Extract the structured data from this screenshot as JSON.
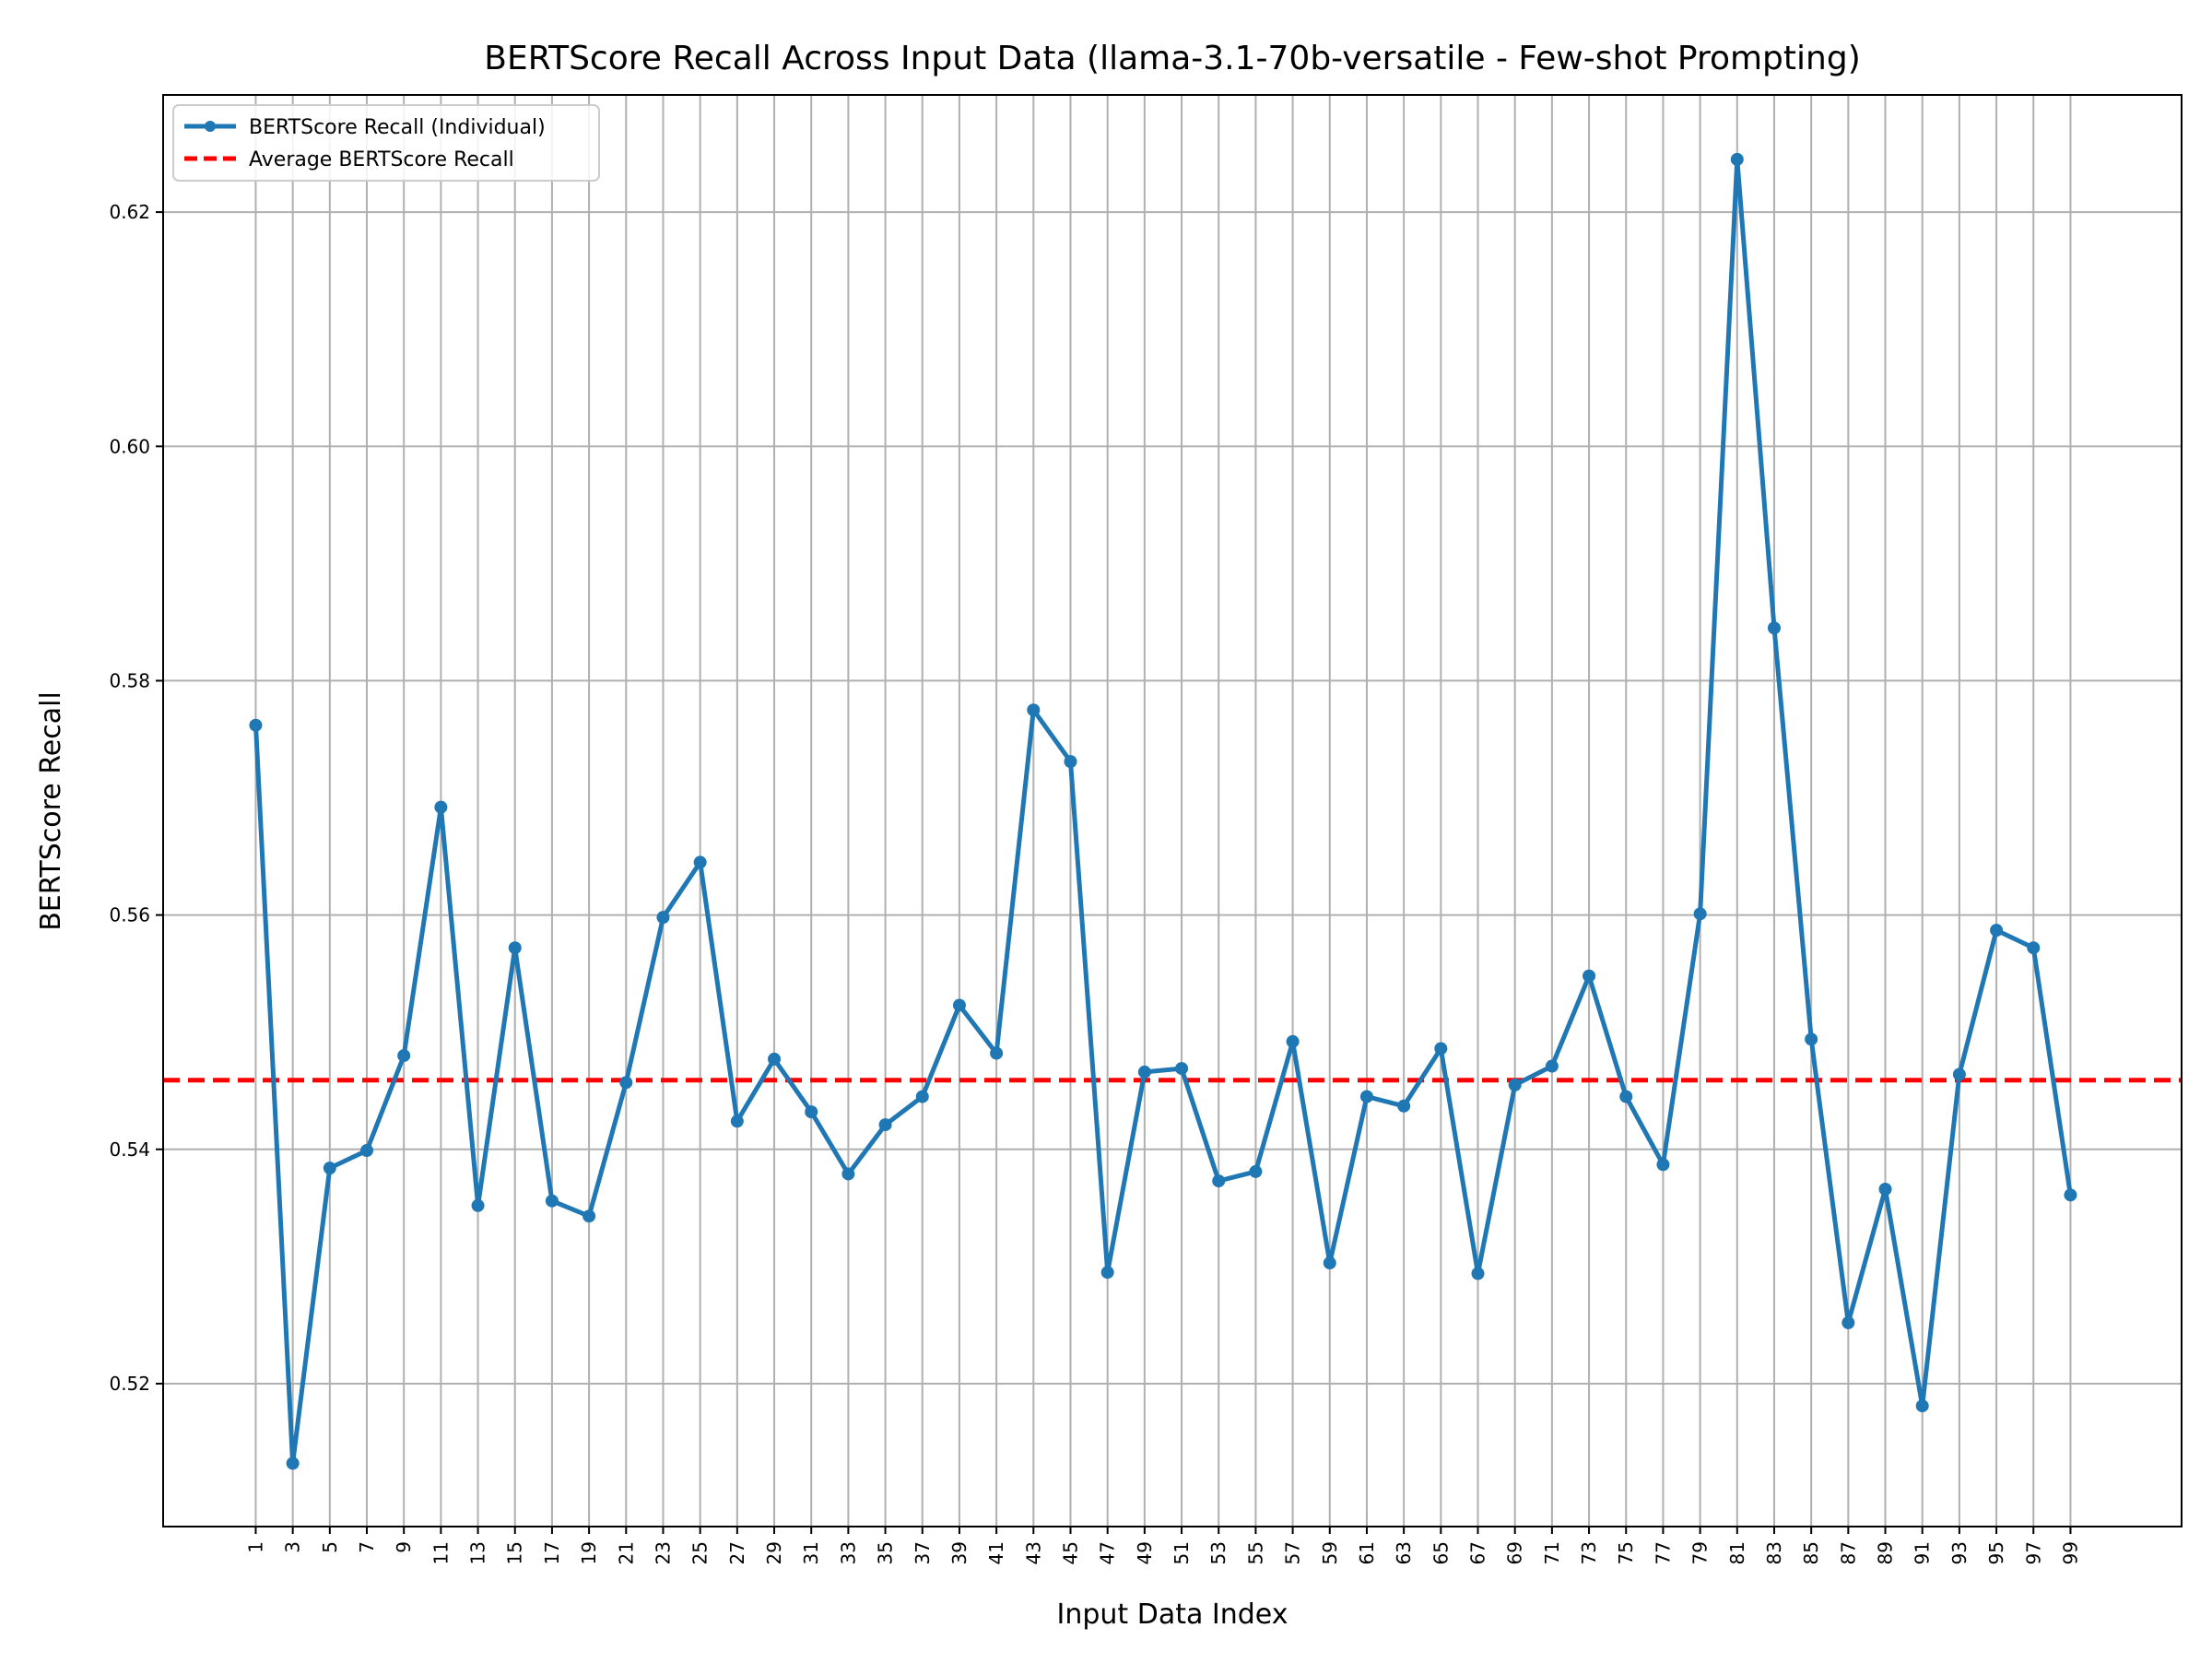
{
  "chart_data": {
    "type": "line",
    "title": "BERTScore Recall Across Input Data (llama-3.1-70b-versatile - Few-shot Prompting)",
    "xlabel": "Input Data Index",
    "ylabel": "BERTScore Recall",
    "x": [
      1,
      3,
      5,
      7,
      9,
      11,
      13,
      15,
      17,
      19,
      21,
      23,
      25,
      27,
      29,
      31,
      33,
      35,
      37,
      39,
      41,
      43,
      45,
      47,
      49,
      51,
      53,
      55,
      57,
      59,
      61,
      63,
      65,
      67,
      69,
      71,
      73,
      75,
      77,
      79,
      81,
      83,
      85,
      87,
      89,
      91,
      93,
      95,
      97,
      99
    ],
    "xticks": [
      "1",
      "3",
      "5",
      "7",
      "9",
      "11",
      "13",
      "15",
      "17",
      "19",
      "21",
      "23",
      "25",
      "27",
      "29",
      "31",
      "33",
      "35",
      "37",
      "39",
      "41",
      "43",
      "45",
      "47",
      "49",
      "51",
      "53",
      "55",
      "57",
      "59",
      "61",
      "63",
      "65",
      "67",
      "69",
      "71",
      "73",
      "75",
      "77",
      "79",
      "81",
      "83",
      "85",
      "87",
      "89",
      "91",
      "93",
      "95",
      "97",
      "99"
    ],
    "yticks": [
      "0.52",
      "0.54",
      "0.56",
      "0.58",
      "0.60",
      "0.62"
    ],
    "ytick_values": [
      0.52,
      0.54,
      0.56,
      0.58,
      0.6,
      0.62
    ],
    "xlim": [
      -4,
      105
    ],
    "ylim": [
      0.5078,
      0.63
    ],
    "grid": true,
    "legend_position": "top-left",
    "series": [
      {
        "name": "BERTScore Recall (Individual)",
        "color": "#1f77b4",
        "style": "solid-with-markers",
        "values": [
          0.5762,
          0.5132,
          0.5384,
          0.5399,
          0.548,
          0.5692,
          0.5352,
          0.5572,
          0.5356,
          0.5343,
          0.5457,
          0.5598,
          0.5645,
          0.5424,
          0.5477,
          0.5432,
          0.5379,
          0.5421,
          0.5445,
          0.5523,
          0.5482,
          0.5775,
          0.5731,
          0.5295,
          0.5466,
          0.5469,
          0.5373,
          0.5381,
          0.5492,
          0.5303,
          0.5445,
          0.5437,
          0.5486,
          0.5294,
          0.5455,
          0.5471,
          0.5548,
          0.5445,
          0.5387,
          0.5601,
          0.6245,
          0.5845,
          0.5494,
          0.5252,
          0.5366,
          0.5181,
          0.5464,
          0.5587,
          0.5572,
          0.5361
        ]
      },
      {
        "name": "Average BERTScore Recall",
        "color": "#ff0000",
        "style": "dashed",
        "value": 0.5459
      }
    ]
  }
}
